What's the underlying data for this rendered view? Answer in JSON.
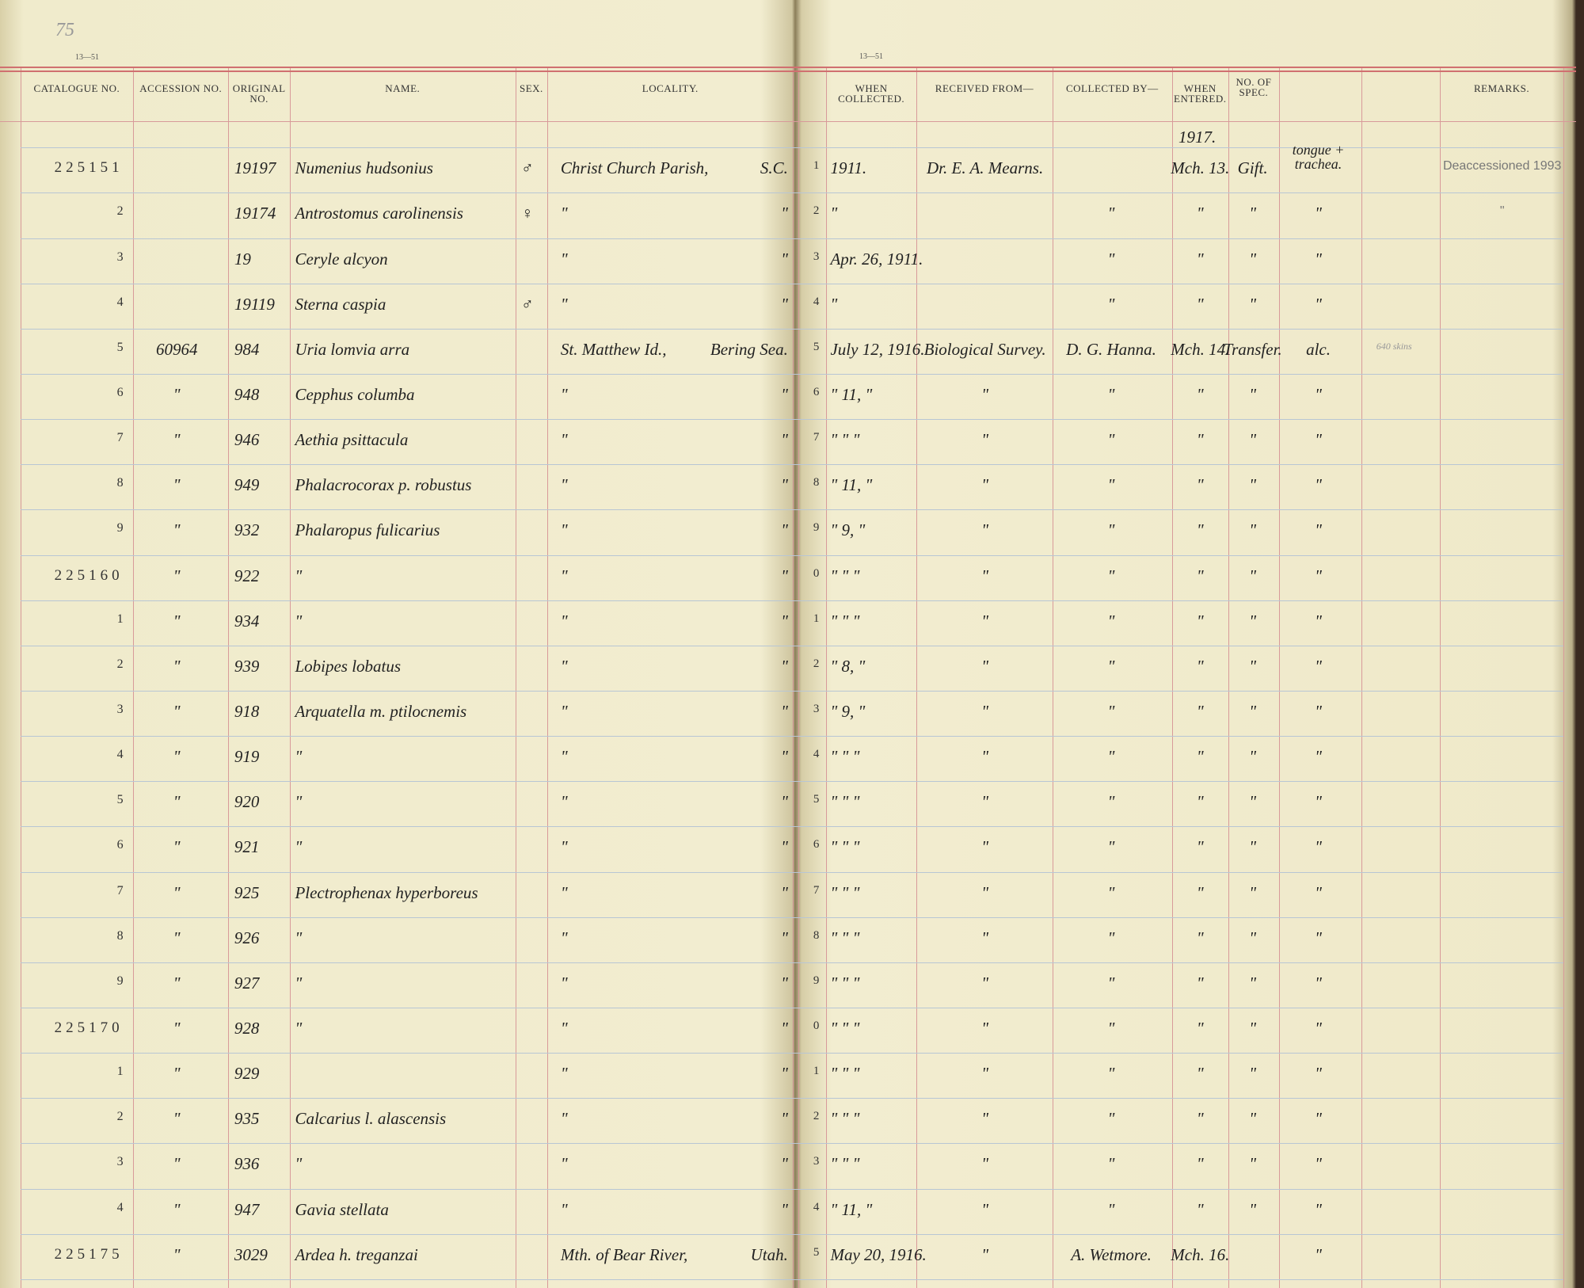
{
  "page": {
    "folio": "75",
    "left_stamp": "13—51",
    "right_stamp": "13—51",
    "year_note": "1917."
  },
  "headers": [
    "Catalogue No.",
    "Accession No.",
    "Original No.",
    "Name.",
    "Sex.",
    "Locality.",
    "When Collected.",
    "Received from—",
    "Collected by—",
    "When Entered.",
    "No. of Spec.",
    "Remarks."
  ],
  "rows": [
    {
      "cat": "225151",
      "orig": "19197",
      "name": "Numenius hudsonius",
      "sex": "♂",
      "loc": "Christ Church Parish,",
      "loc2": "S.C.",
      "line": "1",
      "coll": "1911.",
      "recv": "Dr. E. A. Mearns.",
      "ent": "Mch. 13.",
      "spec": "Gift.",
      "extra": "tongue + trachea.",
      "rem": "Deaccessioned 1993"
    },
    {
      "cat": "2",
      "orig": "19174",
      "name": "Antrostomus carolinensis",
      "sex": "♀",
      "loc": "\"",
      "loc2": "\"",
      "line": "2",
      "coll": "\"",
      "by": "\"",
      "ent": "\"",
      "spec": "\"",
      "extra": "\"",
      "rem": "\""
    },
    {
      "cat": "3",
      "orig": "19",
      "name": "Ceryle alcyon",
      "loc": "\"",
      "loc2": "\"",
      "line": "3",
      "coll": "Apr. 26, 1911.",
      "by": "\"",
      "ent": "\"",
      "spec": "\"",
      "extra": "\""
    },
    {
      "cat": "4",
      "orig": "19119",
      "name": "Sterna caspia",
      "sex": "♂",
      "loc": "\"",
      "loc2": "\"",
      "line": "4",
      "coll": "\"",
      "by": "\"",
      "ent": "\"",
      "spec": "\"",
      "extra": "\""
    },
    {
      "cat": "5",
      "acc": "60964",
      "orig": "984",
      "name": "Uria lomvia arra",
      "loc": "St. Matthew Id.,",
      "loc2": "Bering Sea.",
      "line": "5",
      "coll": "July 12, 1916.",
      "recv": "Biological Survey.",
      "by": "D. G. Hanna.",
      "ent": "Mch. 14.",
      "spec": "Transfer.",
      "extra": "alc.",
      "note": "640 skins"
    },
    {
      "cat": "6",
      "acc": "\"",
      "orig": "948",
      "name": "Cepphus columba",
      "loc": "\"",
      "loc2": "\"",
      "line": "6",
      "coll": "\" 11, \"",
      "recv": "\"",
      "by": "\"",
      "ent": "\"",
      "spec": "\"",
      "extra": "\""
    },
    {
      "cat": "7",
      "acc": "\"",
      "orig": "946",
      "name": "Aethia psittacula",
      "loc": "\"",
      "loc2": "\"",
      "line": "7",
      "coll": "\" \" \"",
      "recv": "\"",
      "by": "\"",
      "ent": "\"",
      "spec": "\"",
      "extra": "\""
    },
    {
      "cat": "8",
      "acc": "\"",
      "orig": "949",
      "name": "Phalacrocorax p. robustus",
      "loc": "\"",
      "loc2": "\"",
      "line": "8",
      "coll": "\" 11, \"",
      "recv": "\"",
      "by": "\"",
      "ent": "\"",
      "spec": "\"",
      "extra": "\""
    },
    {
      "cat": "9",
      "acc": "\"",
      "orig": "932",
      "name": "Phalaropus fulicarius",
      "loc": "\"",
      "loc2": "\"",
      "line": "9",
      "coll": "\" 9, \"",
      "recv": "\"",
      "by": "\"",
      "ent": "\"",
      "spec": "\"",
      "extra": "\""
    },
    {
      "cat": "225160",
      "acc": "\"",
      "orig": "922",
      "name": "\"",
      "loc": "\"",
      "loc2": "\"",
      "line": "0",
      "coll": "\" \" \"",
      "recv": "\"",
      "by": "\"",
      "ent": "\"",
      "spec": "\"",
      "extra": "\""
    },
    {
      "cat": "1",
      "acc": "\"",
      "orig": "934",
      "name": "\"",
      "loc": "\"",
      "loc2": "\"",
      "line": "1",
      "coll": "\" \" \"",
      "recv": "\"",
      "by": "\"",
      "ent": "\"",
      "spec": "\"",
      "extra": "\""
    },
    {
      "cat": "2",
      "acc": "\"",
      "orig": "939",
      "name": "Lobipes lobatus",
      "loc": "\"",
      "loc2": "\"",
      "line": "2",
      "coll": "\" 8, \"",
      "recv": "\"",
      "by": "\"",
      "ent": "\"",
      "spec": "\"",
      "extra": "\""
    },
    {
      "cat": "3",
      "acc": "\"",
      "orig": "918",
      "name": "Arquatella m. ptilocnemis",
      "loc": "\"",
      "loc2": "\"",
      "line": "3",
      "coll": "\" 9, \"",
      "recv": "\"",
      "by": "\"",
      "ent": "\"",
      "spec": "\"",
      "extra": "\""
    },
    {
      "cat": "4",
      "acc": "\"",
      "orig": "919",
      "name": "\"",
      "loc": "\"",
      "loc2": "\"",
      "line": "4",
      "coll": "\" \" \"",
      "recv": "\"",
      "by": "\"",
      "ent": "\"",
      "spec": "\"",
      "extra": "\""
    },
    {
      "cat": "5",
      "acc": "\"",
      "orig": "920",
      "name": "\"",
      "loc": "\"",
      "loc2": "\"",
      "line": "5",
      "coll": "\" \" \"",
      "recv": "\"",
      "by": "\"",
      "ent": "\"",
      "spec": "\"",
      "extra": "\""
    },
    {
      "cat": "6",
      "acc": "\"",
      "orig": "921",
      "name": "\"",
      "loc": "\"",
      "loc2": "\"",
      "line": "6",
      "coll": "\" \" \"",
      "recv": "\"",
      "by": "\"",
      "ent": "\"",
      "spec": "\"",
      "extra": "\""
    },
    {
      "cat": "7",
      "acc": "\"",
      "orig": "925",
      "name": "Plectrophenax hyperboreus",
      "loc": "\"",
      "loc2": "\"",
      "line": "7",
      "coll": "\" \" \"",
      "recv": "\"",
      "by": "\"",
      "ent": "\"",
      "spec": "\"",
      "extra": "\""
    },
    {
      "cat": "8",
      "acc": "\"",
      "orig": "926",
      "name": "\"",
      "loc": "\"",
      "loc2": "\"",
      "line": "8",
      "coll": "\" \" \"",
      "recv": "\"",
      "by": "\"",
      "ent": "\"",
      "spec": "\"",
      "extra": "\""
    },
    {
      "cat": "9",
      "acc": "\"",
      "orig": "927",
      "name": "\"",
      "loc": "\"",
      "loc2": "\"",
      "line": "9",
      "coll": "\" \" \"",
      "recv": "\"",
      "by": "\"",
      "ent": "\"",
      "spec": "\"",
      "extra": "\""
    },
    {
      "cat": "225170",
      "acc": "\"",
      "orig": "928",
      "name": "\"",
      "loc": "\"",
      "loc2": "\"",
      "line": "0",
      "coll": "\" \" \"",
      "recv": "\"",
      "by": "\"",
      "ent": "\"",
      "spec": "\"",
      "extra": "\""
    },
    {
      "cat": "1",
      "acc": "\"",
      "orig": "929",
      "loc": "\"",
      "loc2": "\"",
      "line": "1",
      "coll": "\" \" \"",
      "recv": "\"",
      "by": "\"",
      "ent": "\"",
      "spec": "\"",
      "extra": "\""
    },
    {
      "cat": "2",
      "acc": "\"",
      "orig": "935",
      "name": "Calcarius l. alascensis",
      "loc": "\"",
      "loc2": "\"",
      "line": "2",
      "coll": "\" \" \"",
      "recv": "\"",
      "by": "\"",
      "ent": "\"",
      "spec": "\"",
      "extra": "\""
    },
    {
      "cat": "3",
      "acc": "\"",
      "orig": "936",
      "name": "\"",
      "loc": "\"",
      "loc2": "\"",
      "line": "3",
      "coll": "\" \" \"",
      "recv": "\"",
      "by": "\"",
      "ent": "\"",
      "spec": "\"",
      "extra": "\""
    },
    {
      "cat": "4",
      "acc": "\"",
      "orig": "947",
      "name": "Gavia stellata",
      "loc": "\"",
      "loc2": "\"",
      "line": "4",
      "coll": "\" 11, \"",
      "recv": "\"",
      "by": "\"",
      "ent": "\"",
      "spec": "\"",
      "extra": "\""
    },
    {
      "cat": "225175",
      "acc": "\"",
      "orig": "3029",
      "name": "Ardea h. treganzai",
      "loc": "Mth. of Bear River,",
      "loc2": "Utah.",
      "line": "5",
      "coll": "May 20, 1916.",
      "recv": "\"",
      "by": "A. Wetmore.",
      "ent": "Mch. 16.",
      "extra": "\""
    }
  ]
}
